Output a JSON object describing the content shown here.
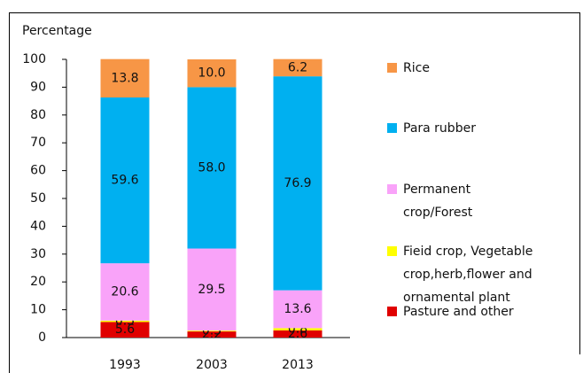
{
  "chart_data": {
    "type": "stacked_bar",
    "y_label": "Percentage",
    "categories": [
      "1993",
      "2003",
      "2013"
    ],
    "series": [
      {
        "name": "Pasture and other",
        "color": "#e00000",
        "values": [
          5.6,
          2.2,
          2.6
        ],
        "value_labels": [
          "5.6",
          "2.2",
          "2.6"
        ]
      },
      {
        "name": "Fieid crop, Vegetable crop,herb,flower and ornamental plant",
        "color": "#ffff00",
        "values": [
          0.5,
          0.3,
          0.8
        ],
        "value_labels": [
          "0.5",
          "0.3",
          "0.8"
        ]
      },
      {
        "name": "Permanent crop/Forest",
        "color": "#f9a3f9",
        "values": [
          20.6,
          29.5,
          13.6
        ],
        "value_labels": [
          "20.6",
          "29.5",
          "13.6"
        ]
      },
      {
        "name": "Para rubber",
        "color": "#00b0f0",
        "values": [
          59.6,
          58.0,
          76.9
        ],
        "value_labels": [
          "59.6",
          "58.0",
          "76.9"
        ]
      },
      {
        "name": "Rice",
        "color": "#f79646",
        "values": [
          13.8,
          10.0,
          6.2
        ],
        "value_labels": [
          "13.8",
          "10.0",
          "6.2"
        ]
      }
    ],
    "ylim": [
      0,
      100
    ],
    "yticks": [
      0,
      10,
      20,
      30,
      40,
      50,
      60,
      70,
      80,
      90,
      100
    ]
  }
}
